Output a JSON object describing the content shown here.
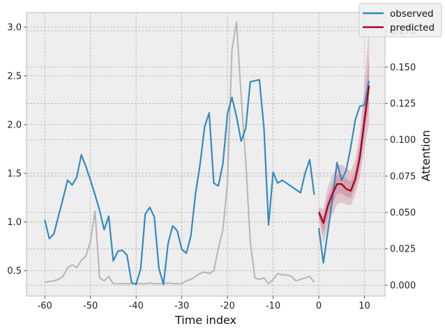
{
  "chart_data": {
    "type": "line",
    "title": "",
    "xlabel": "Time index",
    "ylabel_left": "",
    "ylabel_right": "Attention",
    "xlim": [
      -64,
      14.5
    ],
    "ylim_left": [
      0.24,
      3.15
    ],
    "ylim_right": [
      -0.0075,
      0.1875
    ],
    "grid": true,
    "legend_position": "top-right",
    "x_ticks": [
      -60,
      -50,
      -40,
      -30,
      -20,
      -10,
      0,
      10
    ],
    "y_ticks_left": [
      0.5,
      1.0,
      1.5,
      2.0,
      2.5,
      3.0
    ],
    "y_ticks_right": [
      0.0,
      0.025,
      0.05,
      0.075,
      0.1,
      0.125,
      0.15,
      0.175
    ],
    "colors": {
      "observed": "#348abd",
      "predicted": "#a60628",
      "band": "#d6a3b0",
      "attention": "#b5b5b5"
    },
    "series": [
      {
        "name": "observed",
        "axis": "left",
        "x": [
          -60,
          -59,
          -58,
          -57,
          -56,
          -55,
          -54,
          -53,
          -52,
          -51,
          -50,
          -49,
          -48,
          -47,
          -46,
          -45,
          -44,
          -43,
          -42,
          -41,
          -40,
          -39,
          -38,
          -37,
          -36,
          -35,
          -34,
          -33,
          -32,
          -31,
          -30,
          -29,
          -28,
          -27,
          -26,
          -25,
          -24,
          -23,
          -22,
          -21,
          -20,
          -19,
          -18,
          -17,
          -16,
          -15,
          -14,
          -13,
          -12,
          -11,
          -10,
          -9,
          -8,
          -4,
          -3,
          -2,
          -1
        ],
        "values": [
          1.02,
          0.83,
          0.88,
          1.06,
          1.24,
          1.43,
          1.38,
          1.46,
          1.69,
          1.57,
          1.43,
          1.28,
          1.12,
          0.92,
          1.06,
          0.6,
          0.7,
          0.71,
          0.66,
          0.38,
          0.36,
          0.52,
          1.08,
          1.15,
          1.05,
          0.52,
          0.36,
          0.78,
          0.96,
          0.91,
          0.72,
          0.68,
          0.86,
          1.29,
          1.59,
          1.98,
          2.12,
          1.4,
          1.37,
          1.6,
          2.11,
          2.28,
          2.08,
          1.83,
          1.96,
          2.44,
          2.45,
          2.46,
          1.96,
          0.97,
          1.51,
          1.4,
          1.43,
          1.3,
          1.5,
          1.64,
          1.28
        ]
      },
      {
        "name": "observed",
        "axis": "left",
        "x": [
          0,
          1,
          2,
          3,
          4,
          5,
          6,
          7,
          8,
          9,
          10,
          11
        ],
        "values": [
          0.94,
          0.58,
          0.91,
          1.24,
          1.61,
          1.43,
          1.53,
          1.77,
          2.05,
          2.19,
          2.2,
          2.45
        ]
      },
      {
        "name": "predicted",
        "axis": "left",
        "x": [
          0,
          1,
          2,
          3,
          4,
          5,
          6,
          7,
          8,
          9,
          10,
          11
        ],
        "values": [
          1.1,
          0.99,
          1.17,
          1.29,
          1.39,
          1.39,
          1.34,
          1.32,
          1.44,
          1.67,
          2.04,
          2.4
        ],
        "band_lower": [
          1.02,
          0.78,
          0.96,
          1.08,
          1.18,
          1.2,
          1.18,
          1.17,
          1.28,
          1.46,
          1.76,
          2.02
        ],
        "band_upper": [
          1.16,
          1.13,
          1.36,
          1.48,
          1.58,
          1.59,
          1.55,
          1.52,
          1.64,
          1.92,
          2.4,
          3.0
        ]
      },
      {
        "name": "",
        "axis": "right",
        "x": [
          -60,
          -59,
          -58,
          -57,
          -56,
          -55,
          -54,
          -53,
          -52,
          -51,
          -50,
          -49,
          -48,
          -47,
          -46,
          -45,
          -44,
          -43,
          -42,
          -41,
          -40,
          -39,
          -38,
          -37,
          -36,
          -35,
          -34,
          -33,
          -32,
          -31,
          -30,
          -29,
          -28,
          -27,
          -26,
          -25,
          -24,
          -23,
          -22,
          -21,
          -20,
          -19,
          -18,
          -17,
          -16,
          -15,
          -14,
          -13,
          -12,
          -11,
          -10,
          -9,
          -8,
          -7,
          -6,
          -5,
          -4,
          -3,
          -2,
          -1
        ],
        "values": [
          0.002,
          0.0025,
          0.003,
          0.004,
          0.006,
          0.012,
          0.014,
          0.012,
          0.017,
          0.02,
          0.03,
          0.051,
          0.005,
          0.003,
          0.006,
          0.001,
          0.001,
          0.001,
          0.001,
          0.001,
          0.001,
          0.001,
          0.001,
          0.0015,
          0.001,
          0.001,
          0.001,
          0.0015,
          0.001,
          0.001,
          0.001,
          0.003,
          0.004,
          0.006,
          0.008,
          0.009,
          0.008,
          0.01,
          0.025,
          0.038,
          0.07,
          0.162,
          0.181,
          0.13,
          0.085,
          0.03,
          0.005,
          0.004,
          0.005,
          0.001,
          0.004,
          0.008,
          0.007,
          0.007,
          0.006,
          0.003,
          0.004,
          0.005,
          0.006,
          0.002
        ]
      }
    ],
    "legend": [
      {
        "label": "observed",
        "color": "#348abd"
      },
      {
        "label": "predicted",
        "color": "#a60628"
      }
    ]
  }
}
